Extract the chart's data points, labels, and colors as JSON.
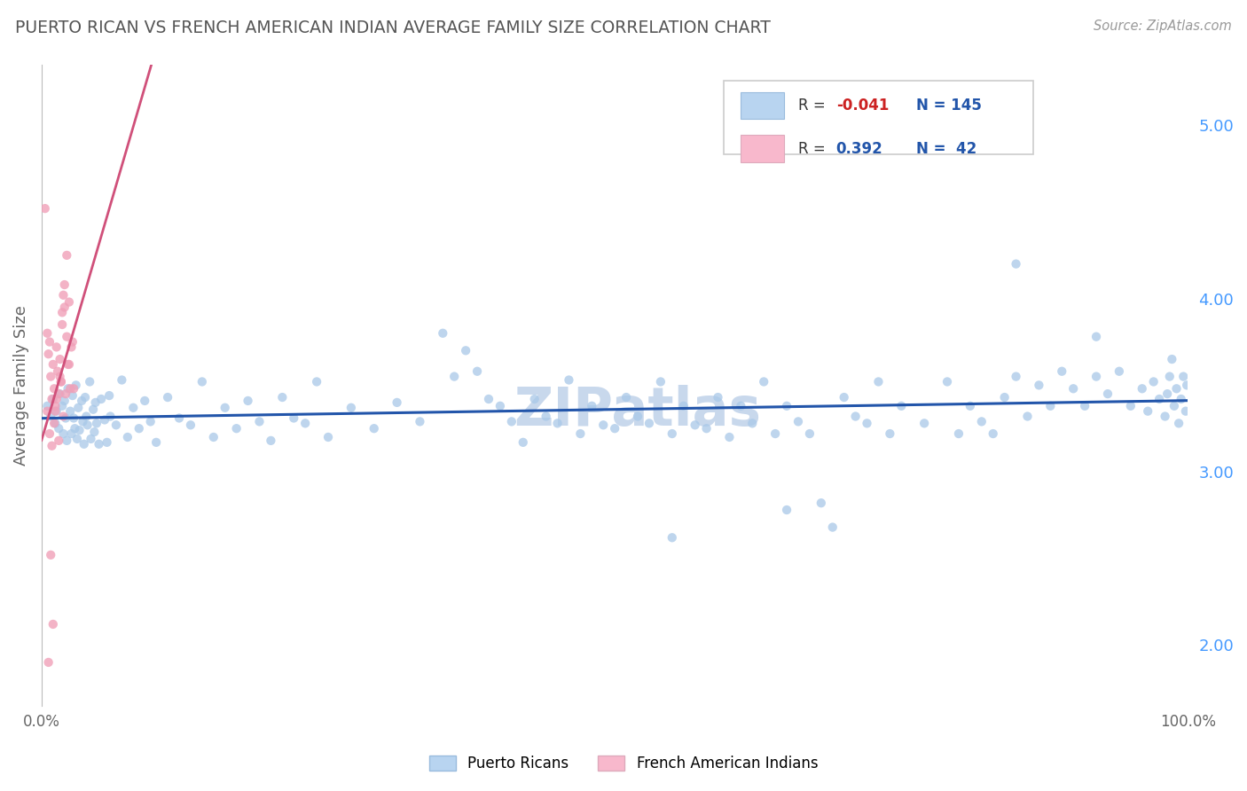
{
  "title": "PUERTO RICAN VS FRENCH AMERICAN INDIAN AVERAGE FAMILY SIZE CORRELATION CHART",
  "source_text": "Source: ZipAtlas.com",
  "ylabel": "Average Family Size",
  "xlim": [
    0,
    1
  ],
  "ylim": [
    1.65,
    5.35
  ],
  "yticks": [
    2.0,
    3.0,
    4.0,
    5.0
  ],
  "xtick_labels": [
    "0.0%",
    "100.0%"
  ],
  "blue_R": "-0.041",
  "blue_N": "145",
  "pink_R": "0.392",
  "pink_N": "42",
  "blue_scatter_color": "#a8c8e8",
  "pink_scatter_color": "#f0a0b8",
  "blue_line_color": "#2255aa",
  "pink_line_color": "#d0507a",
  "dashed_line_color": "#e0a0b8",
  "watermark_text": "ZIPatlas",
  "watermark_color": "#c8d8ec",
  "background_color": "#ffffff",
  "grid_color": "#dddddd",
  "title_color": "#555555",
  "source_color": "#999999",
  "blue_points": [
    [
      0.005,
      3.38
    ],
    [
      0.008,
      3.32
    ],
    [
      0.01,
      3.42
    ],
    [
      0.012,
      3.28
    ],
    [
      0.013,
      3.35
    ],
    [
      0.015,
      3.25
    ],
    [
      0.016,
      3.45
    ],
    [
      0.018,
      3.38
    ],
    [
      0.019,
      3.22
    ],
    [
      0.02,
      3.41
    ],
    [
      0.021,
      3.31
    ],
    [
      0.022,
      3.18
    ],
    [
      0.023,
      3.48
    ],
    [
      0.025,
      3.35
    ],
    [
      0.026,
      3.22
    ],
    [
      0.027,
      3.44
    ],
    [
      0.028,
      3.31
    ],
    [
      0.029,
      3.25
    ],
    [
      0.03,
      3.5
    ],
    [
      0.031,
      3.19
    ],
    [
      0.032,
      3.37
    ],
    [
      0.033,
      3.24
    ],
    [
      0.035,
      3.41
    ],
    [
      0.036,
      3.29
    ],
    [
      0.037,
      3.16
    ],
    [
      0.038,
      3.43
    ],
    [
      0.039,
      3.32
    ],
    [
      0.04,
      3.27
    ],
    [
      0.042,
      3.52
    ],
    [
      0.043,
      3.19
    ],
    [
      0.045,
      3.36
    ],
    [
      0.046,
      3.23
    ],
    [
      0.047,
      3.4
    ],
    [
      0.048,
      3.28
    ],
    [
      0.05,
      3.16
    ],
    [
      0.052,
      3.42
    ],
    [
      0.055,
      3.3
    ],
    [
      0.057,
      3.17
    ],
    [
      0.059,
      3.44
    ],
    [
      0.06,
      3.32
    ],
    [
      0.065,
      3.27
    ],
    [
      0.07,
      3.53
    ],
    [
      0.075,
      3.2
    ],
    [
      0.08,
      3.37
    ],
    [
      0.085,
      3.25
    ],
    [
      0.09,
      3.41
    ],
    [
      0.095,
      3.29
    ],
    [
      0.1,
      3.17
    ],
    [
      0.11,
      3.43
    ],
    [
      0.12,
      3.31
    ],
    [
      0.13,
      3.27
    ],
    [
      0.14,
      3.52
    ],
    [
      0.15,
      3.2
    ],
    [
      0.16,
      3.37
    ],
    [
      0.17,
      3.25
    ],
    [
      0.18,
      3.41
    ],
    [
      0.19,
      3.29
    ],
    [
      0.2,
      3.18
    ],
    [
      0.21,
      3.43
    ],
    [
      0.22,
      3.31
    ],
    [
      0.23,
      3.28
    ],
    [
      0.24,
      3.52
    ],
    [
      0.25,
      3.2
    ],
    [
      0.27,
      3.37
    ],
    [
      0.29,
      3.25
    ],
    [
      0.31,
      3.4
    ],
    [
      0.33,
      3.29
    ],
    [
      0.35,
      3.8
    ],
    [
      0.36,
      3.55
    ],
    [
      0.37,
      3.7
    ],
    [
      0.38,
      3.58
    ],
    [
      0.39,
      3.42
    ],
    [
      0.4,
      3.38
    ],
    [
      0.41,
      3.29
    ],
    [
      0.42,
      3.17
    ],
    [
      0.43,
      3.42
    ],
    [
      0.44,
      3.32
    ],
    [
      0.45,
      3.28
    ],
    [
      0.46,
      3.53
    ],
    [
      0.47,
      3.22
    ],
    [
      0.48,
      3.38
    ],
    [
      0.49,
      3.27
    ],
    [
      0.5,
      3.25
    ],
    [
      0.51,
      3.43
    ],
    [
      0.52,
      3.32
    ],
    [
      0.53,
      3.28
    ],
    [
      0.54,
      3.52
    ],
    [
      0.55,
      3.22
    ],
    [
      0.56,
      3.38
    ],
    [
      0.57,
      3.27
    ],
    [
      0.58,
      3.25
    ],
    [
      0.59,
      3.43
    ],
    [
      0.6,
      3.2
    ],
    [
      0.61,
      3.38
    ],
    [
      0.62,
      3.28
    ],
    [
      0.63,
      3.52
    ],
    [
      0.64,
      3.22
    ],
    [
      0.65,
      3.38
    ],
    [
      0.66,
      3.29
    ],
    [
      0.67,
      3.22
    ],
    [
      0.68,
      2.82
    ],
    [
      0.69,
      2.68
    ],
    [
      0.7,
      3.43
    ],
    [
      0.71,
      3.32
    ],
    [
      0.72,
      3.28
    ],
    [
      0.73,
      3.52
    ],
    [
      0.74,
      3.22
    ],
    [
      0.75,
      3.38
    ],
    [
      0.77,
      3.28
    ],
    [
      0.79,
      3.52
    ],
    [
      0.8,
      3.22
    ],
    [
      0.81,
      3.38
    ],
    [
      0.82,
      3.29
    ],
    [
      0.83,
      3.22
    ],
    [
      0.84,
      3.43
    ],
    [
      0.85,
      3.55
    ],
    [
      0.86,
      3.32
    ],
    [
      0.87,
      3.5
    ],
    [
      0.88,
      3.38
    ],
    [
      0.89,
      3.58
    ],
    [
      0.9,
      3.48
    ],
    [
      0.91,
      3.38
    ],
    [
      0.92,
      3.55
    ],
    [
      0.93,
      3.45
    ],
    [
      0.94,
      3.58
    ],
    [
      0.95,
      3.38
    ],
    [
      0.96,
      3.48
    ],
    [
      0.965,
      3.35
    ],
    [
      0.97,
      3.52
    ],
    [
      0.975,
      3.42
    ],
    [
      0.98,
      3.32
    ],
    [
      0.982,
      3.45
    ],
    [
      0.984,
      3.55
    ],
    [
      0.986,
      3.65
    ],
    [
      0.988,
      3.38
    ],
    [
      0.99,
      3.48
    ],
    [
      0.992,
      3.28
    ],
    [
      0.994,
      3.42
    ],
    [
      0.996,
      3.55
    ],
    [
      0.998,
      3.35
    ],
    [
      0.999,
      3.5
    ],
    [
      0.85,
      4.2
    ],
    [
      0.92,
      3.78
    ],
    [
      0.55,
      2.62
    ],
    [
      0.65,
      2.78
    ]
  ],
  "pink_points": [
    [
      0.003,
      4.52
    ],
    [
      0.005,
      3.8
    ],
    [
      0.006,
      3.68
    ],
    [
      0.007,
      3.75
    ],
    [
      0.008,
      3.55
    ],
    [
      0.009,
      3.42
    ],
    [
      0.01,
      3.62
    ],
    [
      0.011,
      3.48
    ],
    [
      0.012,
      3.35
    ],
    [
      0.013,
      3.72
    ],
    [
      0.014,
      3.58
    ],
    [
      0.015,
      3.45
    ],
    [
      0.016,
      3.65
    ],
    [
      0.017,
      3.52
    ],
    [
      0.018,
      3.85
    ],
    [
      0.019,
      4.02
    ],
    [
      0.02,
      3.95
    ],
    [
      0.022,
      3.78
    ],
    [
      0.024,
      3.62
    ],
    [
      0.026,
      3.72
    ],
    [
      0.028,
      3.48
    ],
    [
      0.005,
      3.35
    ],
    [
      0.007,
      3.22
    ],
    [
      0.009,
      3.15
    ],
    [
      0.011,
      3.28
    ],
    [
      0.013,
      3.42
    ],
    [
      0.015,
      3.18
    ],
    [
      0.017,
      3.52
    ],
    [
      0.019,
      3.32
    ],
    [
      0.021,
      3.45
    ],
    [
      0.023,
      3.62
    ],
    [
      0.025,
      3.48
    ],
    [
      0.027,
      3.75
    ],
    [
      0.012,
      3.38
    ],
    [
      0.016,
      3.55
    ],
    [
      0.008,
      2.52
    ],
    [
      0.01,
      2.12
    ],
    [
      0.006,
      1.9
    ],
    [
      0.018,
      3.92
    ],
    [
      0.02,
      4.08
    ],
    [
      0.022,
      4.25
    ],
    [
      0.024,
      3.98
    ]
  ]
}
